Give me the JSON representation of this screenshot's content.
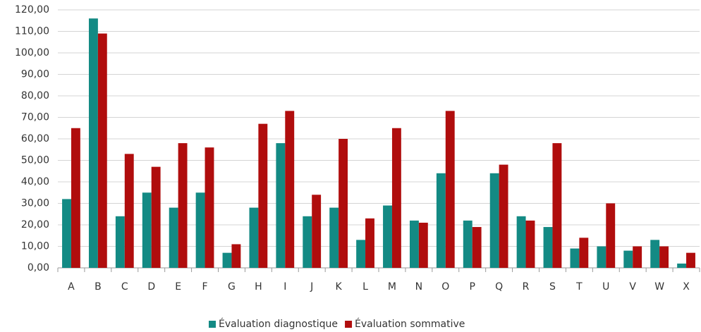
{
  "chart_data": {
    "type": "bar",
    "categories": [
      "A",
      "B",
      "C",
      "D",
      "E",
      "F",
      "G",
      "H",
      "I",
      "J",
      "K",
      "L",
      "M",
      "N",
      "O",
      "P",
      "Q",
      "R",
      "S",
      "T",
      "U",
      "V",
      "W",
      "X"
    ],
    "series": [
      {
        "name": "Évaluation diagnostique",
        "color": "#138a84",
        "values": [
          32,
          116,
          24,
          35,
          28,
          35,
          7,
          28,
          58,
          24,
          28,
          13,
          29,
          22,
          44,
          22,
          44,
          24,
          19,
          9,
          10,
          8,
          13,
          2
        ]
      },
      {
        "name": "Évaluation sommative",
        "color": "#b00d0d",
        "values": [
          65,
          109,
          53,
          47,
          58,
          56,
          11,
          67,
          73,
          34,
          60,
          23,
          65,
          21,
          73,
          19,
          48,
          22,
          58,
          14,
          30,
          10,
          10,
          7
        ]
      }
    ],
    "ylim": [
      0,
      120
    ],
    "yticks": [
      {
        "value": 0,
        "label": "0,00"
      },
      {
        "value": 10,
        "label": "10,00"
      },
      {
        "value": 20,
        "label": "20,00"
      },
      {
        "value": 30,
        "label": "30,00"
      },
      {
        "value": 40,
        "label": "40,00"
      },
      {
        "value": 50,
        "label": "50,00"
      },
      {
        "value": 60,
        "label": "60,00"
      },
      {
        "value": 70,
        "label": "70,00"
      },
      {
        "value": 80,
        "label": "80,00"
      },
      {
        "value": 90,
        "label": "90,00"
      },
      {
        "value": 100,
        "label": "100,00"
      },
      {
        "value": 110,
        "label": "110,00"
      },
      {
        "value": 120,
        "label": "120,00"
      }
    ],
    "grid": true,
    "legend": "bottom"
  }
}
